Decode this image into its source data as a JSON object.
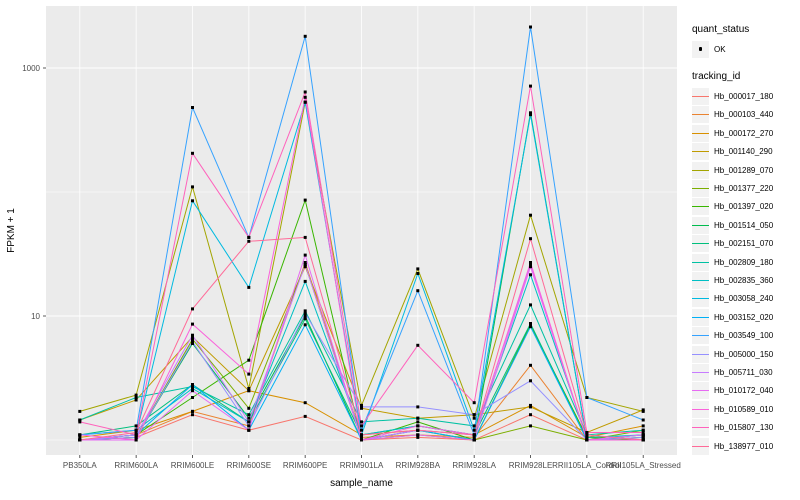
{
  "figure": {
    "panel_bg": "#EBEBEB",
    "grid_color": "#FFFFFF",
    "point_color": "#000000",
    "axis_text_color": "#4D4D4D",
    "legend_key_bg": "#F2F2F2"
  },
  "axes": {
    "x_title": "sample_name",
    "y_title": "FPKM + 1",
    "y_tick_labels": [
      "10",
      "1000"
    ],
    "y_tick_values": [
      10,
      1000
    ],
    "y_grid_values": [
      1,
      10,
      100,
      1000
    ]
  },
  "legend": {
    "quant_title": "quant_status",
    "quant_item_label": "OK",
    "tracking_title": "tracking_id"
  },
  "chart_data": {
    "type": "line",
    "title": "",
    "xlabel": "sample_name",
    "ylabel": "FPKM + 1",
    "y_scale": "log10",
    "ylim": [
      1,
      3162
    ],
    "grid": true,
    "legend_position": "right",
    "categories": [
      "PB350LA",
      "RRIM600LA",
      "RRIM600LE",
      "RRIM600SE",
      "RRIM600PE",
      "RRIM901LA",
      "RRIM928BA",
      "RRIM928LA",
      "RRIM928LE",
      "RRII105LA_Control",
      "RRII105LA_Stressed"
    ],
    "series": [
      {
        "name": "Hb_000017_180",
        "color": "#F8766D",
        "values": [
          1.0,
          1.05,
          1.6,
          1.2,
          1.55,
          1.0,
          1.05,
          1.0,
          1.6,
          1.0,
          1.05
        ]
      },
      {
        "name": "Hb_000103_440",
        "color": "#EA8331",
        "values": [
          1.0,
          1.1,
          1.7,
          1.3,
          27,
          1.05,
          1.1,
          1.05,
          4.0,
          1.0,
          1.1
        ]
      },
      {
        "name": "Hb_000172_270",
        "color": "#D89000",
        "values": [
          1.05,
          1.2,
          1.7,
          2.5,
          2.0,
          1.1,
          1.2,
          1.1,
          1.9,
          1.05,
          1.3
        ]
      },
      {
        "name": "Hb_001140_290",
        "color": "#C09B00",
        "values": [
          1.45,
          2.1,
          6.8,
          2.5,
          25,
          1.8,
          1.5,
          1.6,
          1.85,
          1.15,
          1.75
        ]
      },
      {
        "name": "Hb_001289_070",
        "color": "#A3A500",
        "values": [
          1.7,
          2.3,
          110,
          2.6,
          530,
          1.9,
          24,
          1.5,
          65,
          2.2,
          1.7
        ]
      },
      {
        "name": "Hb_001377_220",
        "color": "#7CAE00",
        "values": [
          1.0,
          1.05,
          6.5,
          1.8,
          26,
          1.0,
          1.1,
          1.0,
          1.3,
          1.0,
          1.2
        ]
      },
      {
        "name": "Hb_001397_020",
        "color": "#39B600",
        "values": [
          1.0,
          1.1,
          2.2,
          4.4,
          86,
          1.0,
          1.4,
          1.0,
          8.5,
          1.05,
          1.0
        ]
      },
      {
        "name": "Hb_001514_050",
        "color": "#00BB4E",
        "values": [
          1.0,
          1.05,
          6.0,
          1.5,
          10,
          1.0,
          1.2,
          1.0,
          435,
          1.0,
          1.05
        ]
      },
      {
        "name": "Hb_002151_070",
        "color": "#00BF7D",
        "values": [
          1.1,
          1.3,
          2.8,
          1.4,
          9.5,
          1.1,
          1.3,
          1.1,
          8.7,
          1.0,
          1.1
        ]
      },
      {
        "name": "Hb_002809_180",
        "color": "#00C1A3",
        "values": [
          1.45,
          2.2,
          2.7,
          1.6,
          11,
          1.4,
          1.5,
          1.3,
          12.3,
          1.1,
          1.2
        ]
      },
      {
        "name": "Hb_002835_360",
        "color": "#00BFC4",
        "values": [
          1.1,
          1.2,
          2.6,
          1.4,
          19,
          1.1,
          1.3,
          1.1,
          21.5,
          1.05,
          1.1
        ]
      },
      {
        "name": "Hb_003058_240",
        "color": "#00BAE0",
        "values": [
          1.0,
          1.1,
          85,
          17,
          530,
          1.1,
          22,
          1.2,
          420,
          1.0,
          1.1
        ]
      },
      {
        "name": "Hb_003152_020",
        "color": "#00B0F6",
        "values": [
          1.0,
          1.1,
          2.8,
          1.2,
          8.5,
          1.0,
          1.2,
          1.0,
          8.2,
          1.0,
          1.0
        ]
      },
      {
        "name": "Hb_003549_100",
        "color": "#35A2FF",
        "values": [
          1.1,
          1.2,
          480,
          43,
          1800,
          1.2,
          16,
          1.1,
          2140,
          2.2,
          1.45
        ]
      },
      {
        "name": "Hb_005000_150",
        "color": "#9590FF",
        "values": [
          1.0,
          1.05,
          6.2,
          1.3,
          10.5,
          1.85,
          1.85,
          1.6,
          3.0,
          1.0,
          1.05
        ]
      },
      {
        "name": "Hb_005711_030",
        "color": "#C77CFF",
        "values": [
          1.0,
          1.1,
          7.0,
          1.4,
          26,
          1.0,
          1.2,
          1.1,
          26,
          1.0,
          1.0
        ]
      },
      {
        "name": "Hb_010172_040",
        "color": "#E76BF3",
        "values": [
          1.0,
          1.0,
          2.5,
          1.2,
          31,
          1.0,
          1.1,
          1.0,
          25,
          1.0,
          1.1
        ]
      },
      {
        "name": "Hb_010589_010",
        "color": "#FA62DB",
        "values": [
          1.1,
          1.0,
          8.6,
          3.4,
          580,
          1.0,
          1.3,
          1.1,
          27,
          1.0,
          1.0
        ]
      },
      {
        "name": "Hb_015807_130",
        "color": "#FF62BC",
        "values": [
          1.4,
          1.1,
          205,
          43,
          640,
          1.3,
          5.8,
          2.0,
          715,
          1.15,
          1.15
        ]
      },
      {
        "name": "Hb_138977_010",
        "color": "#FF6A98",
        "values": [
          1.0,
          1.15,
          11.4,
          40,
          43,
          1.1,
          1.2,
          1.1,
          42,
          1.1,
          1.0
        ]
      }
    ]
  }
}
